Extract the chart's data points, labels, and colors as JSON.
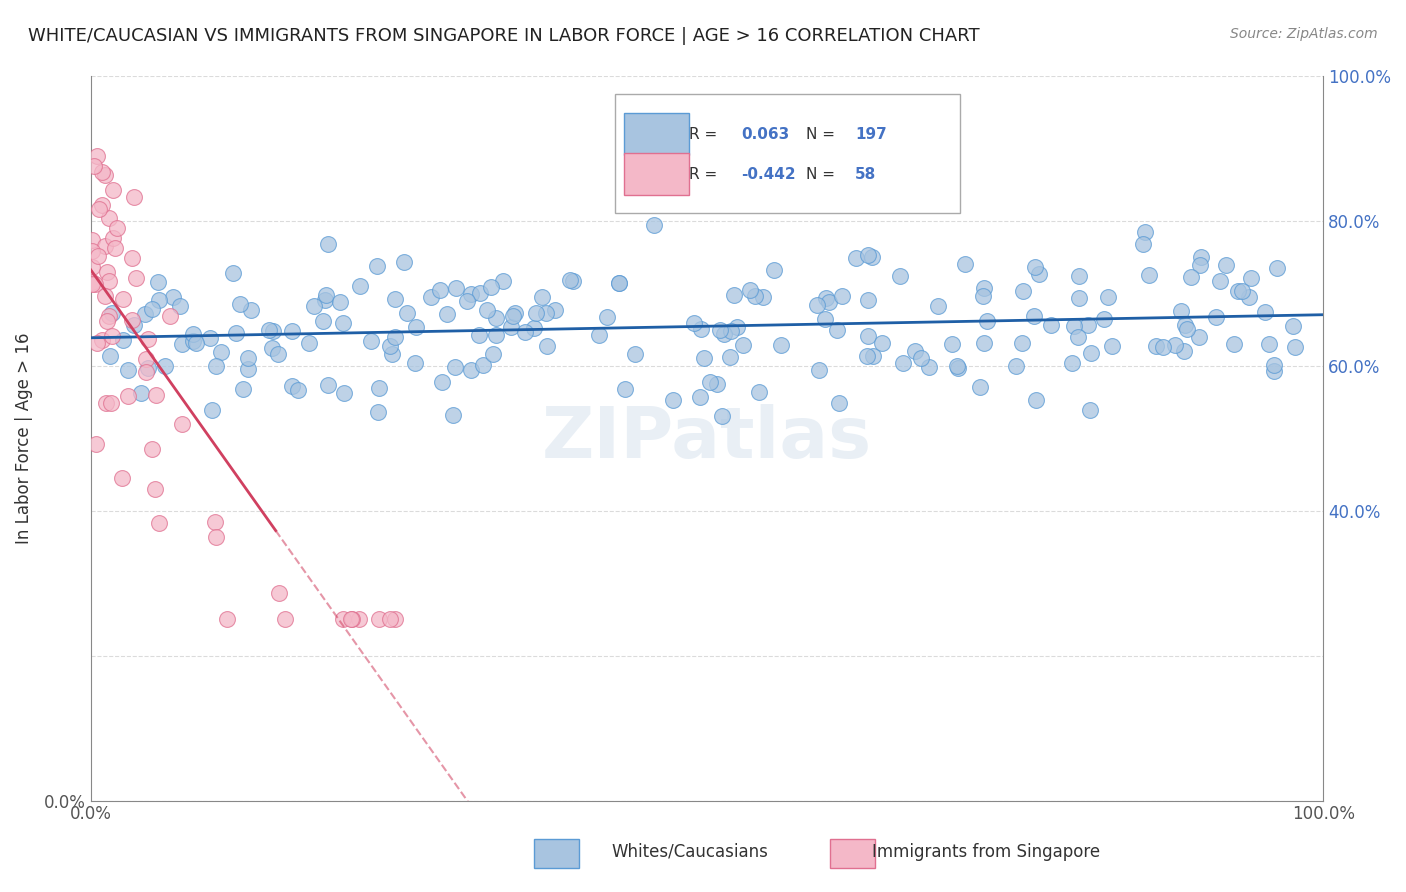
{
  "title": "WHITE/CAUCASIAN VS IMMIGRANTS FROM SINGAPORE IN LABOR FORCE | AGE > 16 CORRELATION CHART",
  "source": "Source: ZipAtlas.com",
  "ylabel": "In Labor Force | Age > 16",
  "watermark": "ZIPatlas",
  "blue_R": 0.063,
  "blue_N": 197,
  "pink_R": -0.442,
  "pink_N": 58,
  "blue_color": "#a8c4e0",
  "blue_edge": "#5b9bd5",
  "pink_color": "#f4b8c8",
  "pink_edge": "#e07090",
  "trend_blue": "#1f5fa6",
  "trend_pink": "#d04060",
  "legend_label_blue": "Whites/Caucasians",
  "legend_label_pink": "Immigrants from Singapore",
  "xlim": [
    0.0,
    1.0
  ],
  "ylim": [
    0.0,
    1.0
  ],
  "background_color": "#ffffff",
  "grid_color": "#cccccc"
}
